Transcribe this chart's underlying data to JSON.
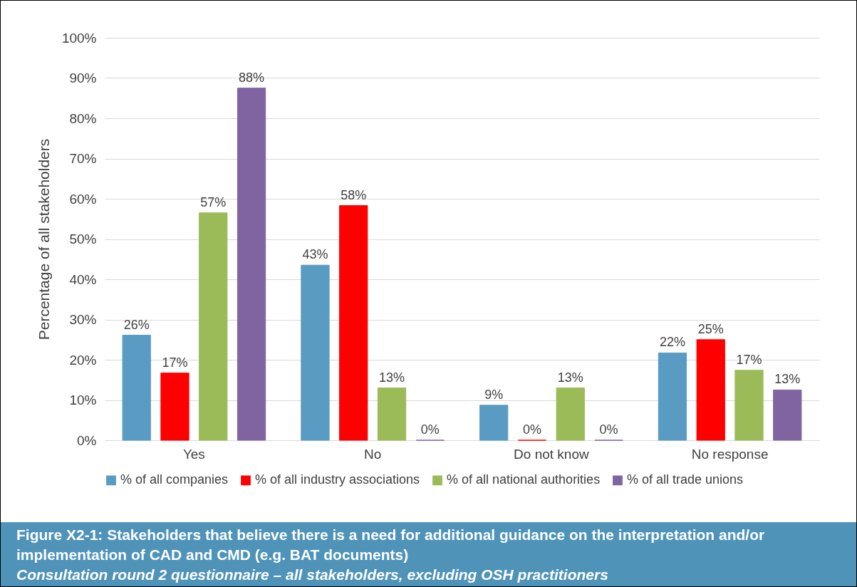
{
  "chart_data": {
    "type": "bar",
    "title": "Figure X2-1: Stakeholders that believe there is a need for additional guidance on the interpretation and/or implementation of CAD and CMD (e.g. BAT documents)",
    "subtitle": "Consultation round 2 questionnaire – all stakeholders, excluding OSH practitioners",
    "ylabel": "Percentage of all stakeholders",
    "categories": [
      "Yes",
      "No",
      "Do not know",
      "No response"
    ],
    "series": [
      {
        "name": "% of all companies",
        "color": "#599bc2",
        "values": [
          26.1,
          43.5,
          8.7,
          21.7
        ],
        "value_labels": [
          "26%",
          "43%",
          "9%",
          "22%"
        ]
      },
      {
        "name": "% of all industry associations",
        "color": "#ff0000",
        "values": [
          16.7,
          58.3,
          0,
          25.0
        ],
        "value_labels": [
          "17%",
          "58%",
          "0%",
          "25%"
        ]
      },
      {
        "name": "% of all national authorities",
        "color": "#9bbb59",
        "values": [
          56.5,
          13.0,
          13.0,
          17.4
        ],
        "value_labels": [
          "57%",
          "13%",
          "13%",
          "17%"
        ]
      },
      {
        "name": "% of all trade unions",
        "color": "#8064a2",
        "values": [
          87.5,
          0,
          0,
          12.5
        ],
        "value_labels": [
          "88%",
          "0%",
          "0%",
          "13%"
        ]
      }
    ],
    "ylim": [
      0,
      100
    ],
    "yticks": [
      {
        "value": 0,
        "label": "0%"
      },
      {
        "value": 10,
        "label": "10%"
      },
      {
        "value": 20,
        "label": "20%"
      },
      {
        "value": 30,
        "label": "30%"
      },
      {
        "value": 40,
        "label": "40%"
      },
      {
        "value": 50,
        "label": "50%"
      },
      {
        "value": 60,
        "label": "60%"
      },
      {
        "value": 70,
        "label": "70%"
      },
      {
        "value": 80,
        "label": "80%"
      },
      {
        "value": 90,
        "label": "90%"
      },
      {
        "value": 100,
        "label": "100%"
      }
    ],
    "grid": "y",
    "legend": "bottom"
  }
}
